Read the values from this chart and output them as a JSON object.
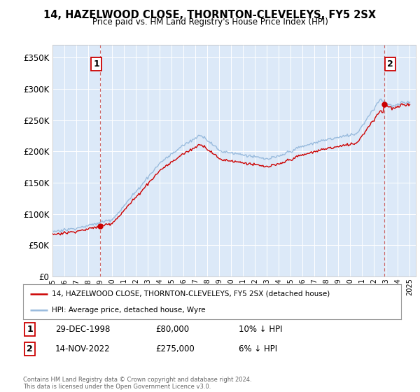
{
  "title": "14, HAZELWOOD CLOSE, THORNTON-CLEVELEYS, FY5 2SX",
  "subtitle": "Price paid vs. HM Land Registry's House Price Index (HPI)",
  "legend_red": "14, HAZELWOOD CLOSE, THORNTON-CLEVELEYS, FY5 2SX (detached house)",
  "legend_blue": "HPI: Average price, detached house, Wyre",
  "annotation1_label": "1",
  "annotation1_date": "29-DEC-1998",
  "annotation1_price": "£80,000",
  "annotation1_hpi": "10% ↓ HPI",
  "annotation1_year": 1998.99,
  "annotation1_value": 80000,
  "annotation2_label": "2",
  "annotation2_date": "14-NOV-2022",
  "annotation2_price": "£275,000",
  "annotation2_hpi": "6% ↓ HPI",
  "annotation2_year": 2022.87,
  "annotation2_value": 275000,
  "yticks": [
    0,
    50000,
    100000,
    150000,
    200000,
    250000,
    300000,
    350000
  ],
  "ylim": [
    0,
    370000
  ],
  "xlim_start": 1995.0,
  "xlim_end": 2025.5,
  "background_color": "#dce9f8",
  "grid_color": "#ffffff",
  "red_color": "#cc0000",
  "blue_color": "#99bbdd",
  "footer": "Contains HM Land Registry data © Crown copyright and database right 2024.\nThis data is licensed under the Open Government Licence v3.0.",
  "xtick_years": [
    1995,
    1996,
    1997,
    1998,
    1999,
    2000,
    2001,
    2002,
    2003,
    2004,
    2005,
    2006,
    2007,
    2008,
    2009,
    2010,
    2011,
    2012,
    2013,
    2014,
    2015,
    2016,
    2017,
    2018,
    2019,
    2020,
    2021,
    2022,
    2023,
    2024,
    2025
  ]
}
